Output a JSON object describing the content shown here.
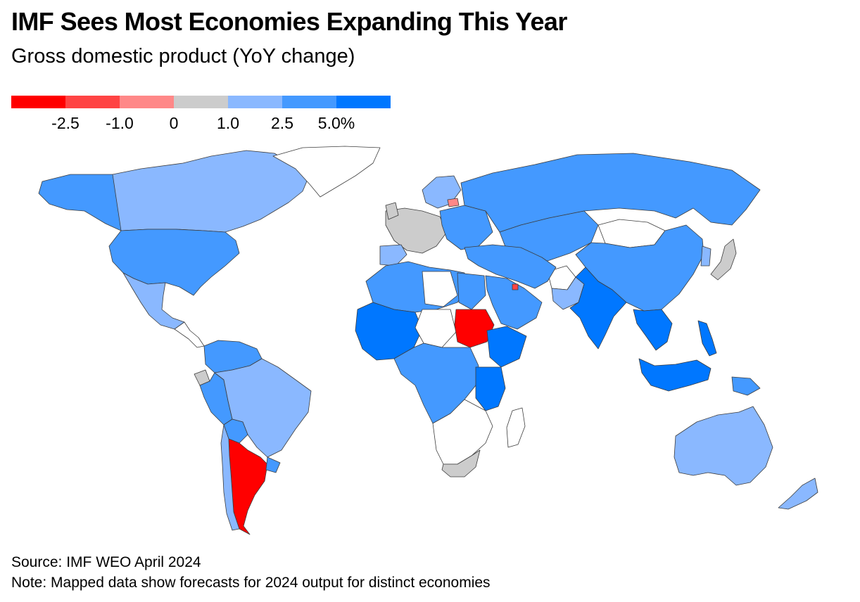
{
  "title": "IMF Sees Most Economies Expanding This Year",
  "subtitle": "Gross domestic product (YoY change)",
  "legend": {
    "colors": [
      "#ff0000",
      "#ff4444",
      "#ff8888",
      "#cccccc",
      "#8ab8ff",
      "#4499ff",
      "#0077ff"
    ],
    "ticks": [
      "-2.5",
      "-1.0",
      "0",
      "1.0",
      "2.5",
      "5.0%"
    ]
  },
  "map": {
    "colors": {
      "no_data": "#ffffff",
      "below_neg_2_5": "#ff0000",
      "neg_2_5_to_neg_1": "#ff4444",
      "neg_1_to_0": "#ff8888",
      "0_to_1": "#cccccc",
      "1_to_2_5": "#8ab8ff",
      "2_5_to_5": "#4499ff",
      "above_5": "#0077ff"
    }
  },
  "footer": {
    "source": "Source: IMF WEO April 2024",
    "note": "Note: Mapped data show forecasts for 2024 output for distinct economies"
  }
}
